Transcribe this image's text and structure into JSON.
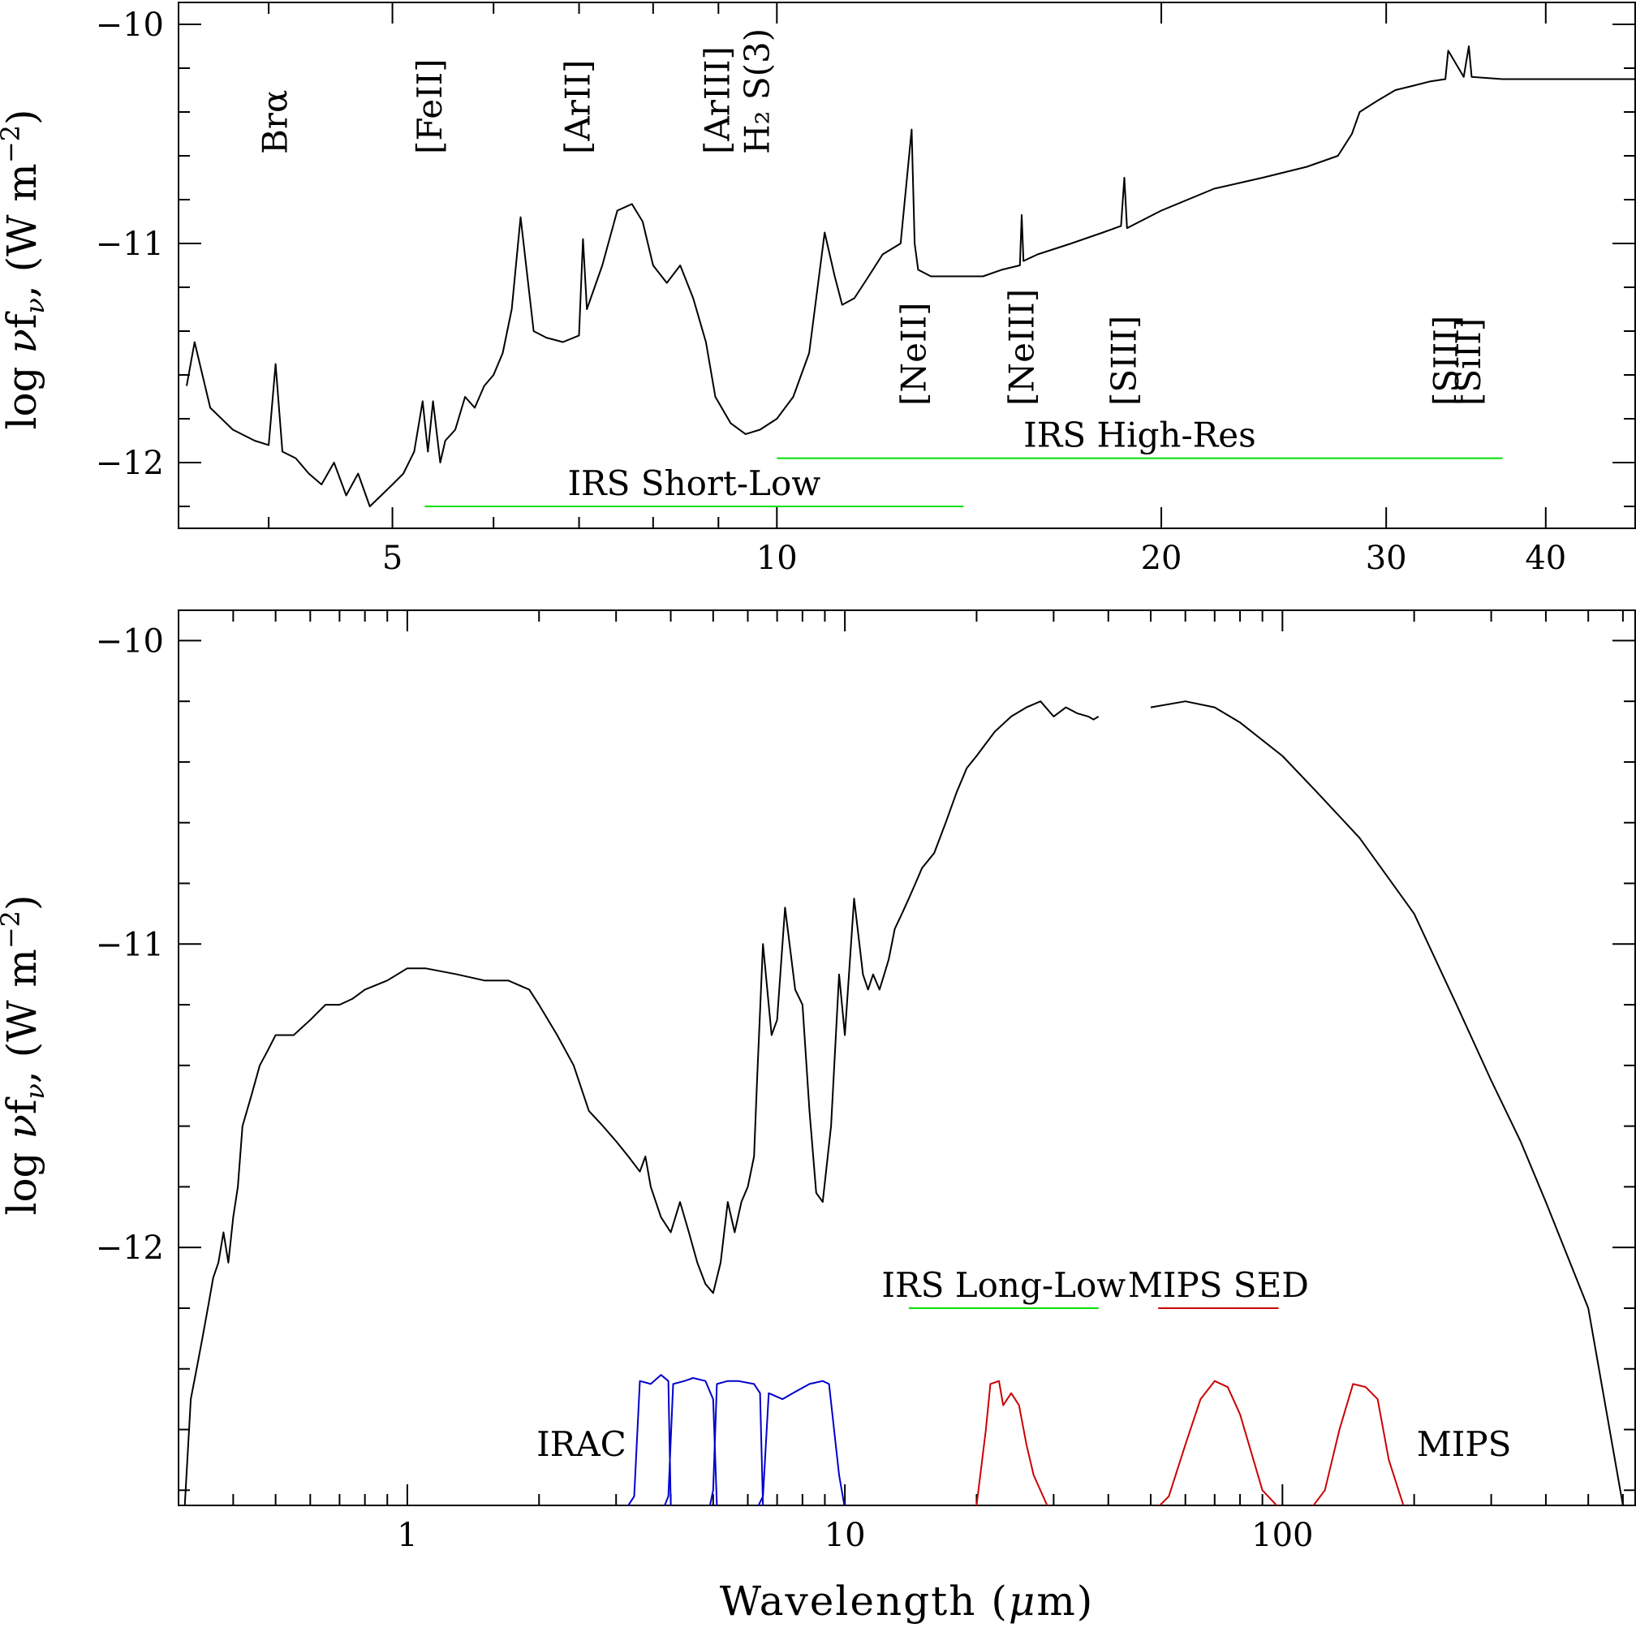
{
  "chart_data": [
    {
      "type": "line",
      "panel": "top",
      "xscale": "log",
      "xlim": [
        3.4,
        47
      ],
      "ylim": [
        -12.3,
        -9.9
      ],
      "ylabel_parts": [
        "log ",
        "ν",
        "f",
        "ν",
        ", (W m",
        "−2",
        ")"
      ],
      "xticks": [
        5,
        10,
        20,
        30,
        40
      ],
      "xtick_labels": [
        "5",
        "10",
        "20",
        "30",
        "40"
      ],
      "yticks": [
        -12,
        -11,
        -10
      ],
      "ytick_labels": [
        "−12",
        "−11",
        "−10"
      ],
      "series": [
        {
          "color": "#000000",
          "x": [
            3.45,
            3.5,
            3.6,
            3.75,
            3.9,
            4.0,
            4.05,
            4.1,
            4.2,
            4.3,
            4.4,
            4.5,
            4.6,
            4.7,
            4.8,
            4.9,
            5.0,
            5.1,
            5.2,
            5.28,
            5.33,
            5.38,
            5.45,
            5.5,
            5.6,
            5.7,
            5.8,
            5.9,
            6.0,
            6.1,
            6.2,
            6.3,
            6.45,
            6.6,
            6.8,
            7.0,
            7.05,
            7.1,
            7.3,
            7.5,
            7.7,
            7.85,
            8.0,
            8.2,
            8.4,
            8.6,
            8.8,
            8.95,
            9.2,
            9.45,
            9.7,
            10.0,
            10.3,
            10.6,
            10.9,
            11.1,
            11.25,
            11.5,
            11.8,
            12.1,
            12.5,
            12.75,
            12.82,
            12.9,
            13.2,
            13.8,
            14.5,
            15.0,
            15.5,
            15.55,
            15.6,
            16.0,
            17.0,
            18.0,
            18.6,
            18.71,
            18.8,
            20.0,
            22.0,
            24.0,
            26.0,
            27.5,
            28.2,
            28.6,
            29.5,
            30.5,
            31.5,
            32.5,
            33.38,
            33.55,
            34.5,
            34.82,
            35.0,
            37.0,
            40.0,
            44.0,
            47.0
          ],
          "y": [
            -11.65,
            -11.45,
            -11.75,
            -11.85,
            -11.9,
            -11.92,
            -11.55,
            -11.95,
            -11.98,
            -12.05,
            -12.1,
            -12.0,
            -12.15,
            -12.05,
            -12.2,
            -12.15,
            -12.1,
            -12.05,
            -11.95,
            -11.72,
            -11.95,
            -11.72,
            -12.0,
            -11.9,
            -11.85,
            -11.7,
            -11.75,
            -11.65,
            -11.6,
            -11.5,
            -11.3,
            -10.88,
            -11.4,
            -11.43,
            -11.45,
            -11.42,
            -10.98,
            -11.3,
            -11.1,
            -10.85,
            -10.82,
            -10.9,
            -11.1,
            -11.18,
            -11.1,
            -11.25,
            -11.45,
            -11.7,
            -11.82,
            -11.87,
            -11.85,
            -11.8,
            -11.7,
            -11.5,
            -10.95,
            -11.15,
            -11.28,
            -11.25,
            -11.15,
            -11.05,
            -11.0,
            -10.48,
            -11.0,
            -11.12,
            -11.15,
            -11.15,
            -11.15,
            -11.12,
            -11.1,
            -10.87,
            -11.08,
            -11.05,
            -11.0,
            -10.95,
            -10.92,
            -10.7,
            -10.93,
            -10.85,
            -10.75,
            -10.7,
            -10.65,
            -10.6,
            -10.5,
            -10.4,
            -10.35,
            -10.3,
            -10.28,
            -10.26,
            -10.25,
            -10.12,
            -10.24,
            -10.1,
            -10.24,
            -10.25,
            -10.25,
            -10.25,
            -10.25
          ]
        }
      ],
      "annotations": [
        {
          "text": "Brα",
          "x": 4.05,
          "dy": 0.45,
          "rotate": true
        },
        {
          "text": "[FeII]",
          "x": 5.35,
          "dy": 0.45,
          "rotate": true
        },
        {
          "text": "[ArII]",
          "x": 6.99,
          "dy": 0.45,
          "rotate": true
        },
        {
          "text": "[ArIII]",
          "x": 8.99,
          "dy": 0.45,
          "rotate": true
        },
        {
          "text": "H₂ S(3)",
          "x": 9.66,
          "dy": 0.45,
          "rotate": true
        },
        {
          "text": "[NeII]",
          "x": 12.81,
          "dy": -0.6,
          "rotate": true
        },
        {
          "text": "[NeIII]",
          "x": 15.56,
          "dy": -0.6,
          "rotate": true
        },
        {
          "text": "[SIII]",
          "x": 18.71,
          "dy": -0.6,
          "rotate": true
        },
        {
          "text": "[SIII]",
          "x": 33.48,
          "dy": -0.6,
          "rotate": true
        },
        {
          "text": "[SiII]",
          "x": 34.82,
          "dy": -0.6,
          "rotate": true
        }
      ],
      "ranges": [
        {
          "label": "IRS Short-Low",
          "x0": 5.3,
          "x1": 14.0,
          "y": -12.2,
          "color": "#00e000"
        },
        {
          "label": "IRS High-Res",
          "x0": 10.0,
          "x1": 37.0,
          "y": -11.98,
          "color": "#00e000"
        }
      ]
    },
    {
      "type": "line",
      "panel": "bottom",
      "xscale": "log",
      "xlim": [
        0.3,
        640
      ],
      "ylim": [
        -12.85,
        -9.9
      ],
      "ylabel_parts": [
        "log ",
        "ν",
        "f",
        "ν",
        ", (W m",
        "−2",
        ")"
      ],
      "xlabel_parts": [
        "Wavelength (",
        "μ",
        "m)"
      ],
      "xticks": [
        1,
        10,
        100
      ],
      "xtick_labels": [
        "1",
        "10",
        "100"
      ],
      "yticks": [
        -12,
        -11,
        -10
      ],
      "ytick_labels": [
        "−12",
        "−11",
        "−10"
      ],
      "series": [
        {
          "name": "SED",
          "color": "#000000",
          "segments": [
            {
              "x": [
                0.3,
                0.31,
                0.32,
                0.33,
                0.34,
                0.35,
                0.36,
                0.37,
                0.38,
                0.39,
                0.4,
                0.41,
                0.42,
                0.44,
                0.46,
                0.48,
                0.5,
                0.55,
                0.6,
                0.65,
                0.7,
                0.75,
                0.8,
                0.9,
                1.0,
                1.1,
                1.3,
                1.5,
                1.7,
                1.9,
                2.0,
                2.2,
                2.4,
                2.6,
                2.8,
                3.0,
                3.2,
                3.4,
                3.5,
                3.6,
                3.8,
                4.0,
                4.2,
                4.4,
                4.6,
                4.8,
                5.0,
                5.2,
                5.4,
                5.6,
                5.8,
                6.0,
                6.2,
                6.3,
                6.5,
                6.8,
                7.0,
                7.3,
                7.7,
                8.0,
                8.3,
                8.6,
                8.9,
                9.3,
                9.7,
                10.0,
                10.5,
                11.0,
                11.3,
                11.6,
                12.0,
                12.3,
                12.6,
                12.8,
                13.0,
                13.5,
                14.0,
                14.5,
                15.0,
                16.0,
                17.0,
                18.0,
                19.0,
                20.0,
                22.0,
                24.0,
                26.0,
                28.0,
                30.0,
                32.0,
                34.0,
                36.0,
                37.0,
                38.0
              ],
              "y": [
                -12.9,
                -12.85,
                -12.5,
                -12.4,
                -12.3,
                -12.2,
                -12.1,
                -12.05,
                -11.95,
                -12.05,
                -11.9,
                -11.8,
                -11.6,
                -11.5,
                -11.4,
                -11.35,
                -11.3,
                -11.3,
                -11.25,
                -11.2,
                -11.2,
                -11.18,
                -11.15,
                -11.12,
                -11.08,
                -11.08,
                -11.1,
                -11.12,
                -11.12,
                -11.15,
                -11.2,
                -11.3,
                -11.4,
                -11.55,
                -11.6,
                -11.65,
                -11.7,
                -11.75,
                -11.7,
                -11.8,
                -11.9,
                -11.95,
                -11.85,
                -11.95,
                -12.05,
                -12.12,
                -12.15,
                -12.05,
                -11.85,
                -11.95,
                -11.85,
                -11.8,
                -11.7,
                -11.45,
                -11.0,
                -11.3,
                -11.25,
                -10.88,
                -11.15,
                -11.2,
                -11.55,
                -11.82,
                -11.85,
                -11.6,
                -11.1,
                -11.3,
                -10.85,
                -11.1,
                -11.15,
                -11.1,
                -11.15,
                -11.1,
                -11.05,
                -11.0,
                -10.95,
                -10.9,
                -10.85,
                -10.8,
                -10.75,
                -10.7,
                -10.6,
                -10.5,
                -10.42,
                -10.38,
                -10.3,
                -10.25,
                -10.22,
                -10.2,
                -10.25,
                -10.22,
                -10.24,
                -10.25,
                -10.26,
                -10.25
              ]
            },
            {
              "x": [
                50,
                60,
                70,
                80,
                100,
                120,
                150,
                200,
                250,
                300,
                350,
                400,
                500,
                600
              ],
              "y": [
                -10.22,
                -10.2,
                -10.22,
                -10.27,
                -10.38,
                -10.5,
                -10.65,
                -10.9,
                -11.2,
                -11.45,
                -11.65,
                -11.85,
                -12.2,
                -12.85
              ]
            }
          ]
        }
      ],
      "filter_curves": [
        {
          "group": "IRAC",
          "color": "#0000cc",
          "x": [
            3.1,
            3.3,
            3.4,
            3.6,
            3.8,
            3.95,
            4.0
          ],
          "y": [
            -12.88,
            -12.82,
            -12.44,
            -12.45,
            -12.42,
            -12.44,
            -12.85
          ]
        },
        {
          "group": "IRAC",
          "color": "#0000cc",
          "x": [
            3.85,
            3.95,
            4.05,
            4.3,
            4.5,
            4.8,
            5.0,
            5.1
          ],
          "y": [
            -12.86,
            -12.82,
            -12.45,
            -12.44,
            -12.43,
            -12.44,
            -12.5,
            -12.85
          ]
        },
        {
          "group": "IRAC",
          "color": "#0000cc",
          "x": [
            4.9,
            5.0,
            5.1,
            5.4,
            5.7,
            6.2,
            6.4,
            6.5
          ],
          "y": [
            -12.86,
            -12.8,
            -12.45,
            -12.44,
            -12.44,
            -12.45,
            -12.48,
            -12.85
          ]
        },
        {
          "group": "IRAC",
          "color": "#0000cc",
          "x": [
            6.3,
            6.5,
            6.7,
            7.2,
            7.6,
            8.3,
            8.9,
            9.2,
            9.7,
            10.0
          ],
          "y": [
            -12.86,
            -12.82,
            -12.48,
            -12.5,
            -12.48,
            -12.45,
            -12.44,
            -12.45,
            -12.75,
            -12.86
          ]
        },
        {
          "group": "MIPS",
          "color": "#cc0000",
          "x": [
            19,
            20,
            21,
            21.5,
            22.5,
            23,
            24,
            25,
            26,
            27,
            29,
            31
          ],
          "y": [
            -12.88,
            -12.85,
            -12.6,
            -12.45,
            -12.44,
            -12.52,
            -12.48,
            -12.52,
            -12.65,
            -12.75,
            -12.85,
            -12.88
          ]
        },
        {
          "group": "MIPS",
          "color": "#cc0000",
          "x": [
            50,
            55,
            60,
            65,
            70,
            75,
            80,
            90,
            100
          ],
          "y": [
            -12.88,
            -12.82,
            -12.65,
            -12.5,
            -12.44,
            -12.46,
            -12.55,
            -12.8,
            -12.87
          ]
        },
        {
          "group": "MIPS",
          "color": "#cc0000",
          "x": [
            100,
            115,
            125,
            135,
            145,
            155,
            165,
            175,
            190,
            200
          ],
          "y": [
            -12.88,
            -12.87,
            -12.8,
            -12.6,
            -12.45,
            -12.46,
            -12.5,
            -12.7,
            -12.86,
            -12.88
          ]
        }
      ],
      "filter_labels": [
        {
          "text": "IRAC",
          "color": "#0000cc",
          "x": 2.5,
          "y": -12.65
        },
        {
          "text": "MIPS",
          "color": "#cc0000",
          "x": 260,
          "y": -12.65
        }
      ],
      "ranges": [
        {
          "label": "IRS Long-Low",
          "x0": 14.0,
          "x1": 38.0,
          "y": -12.2,
          "color": "#00e000"
        },
        {
          "label": "MIPS SED",
          "x0": 52.0,
          "x1": 98.0,
          "y": -12.2,
          "color": "#cc0000"
        }
      ]
    }
  ]
}
